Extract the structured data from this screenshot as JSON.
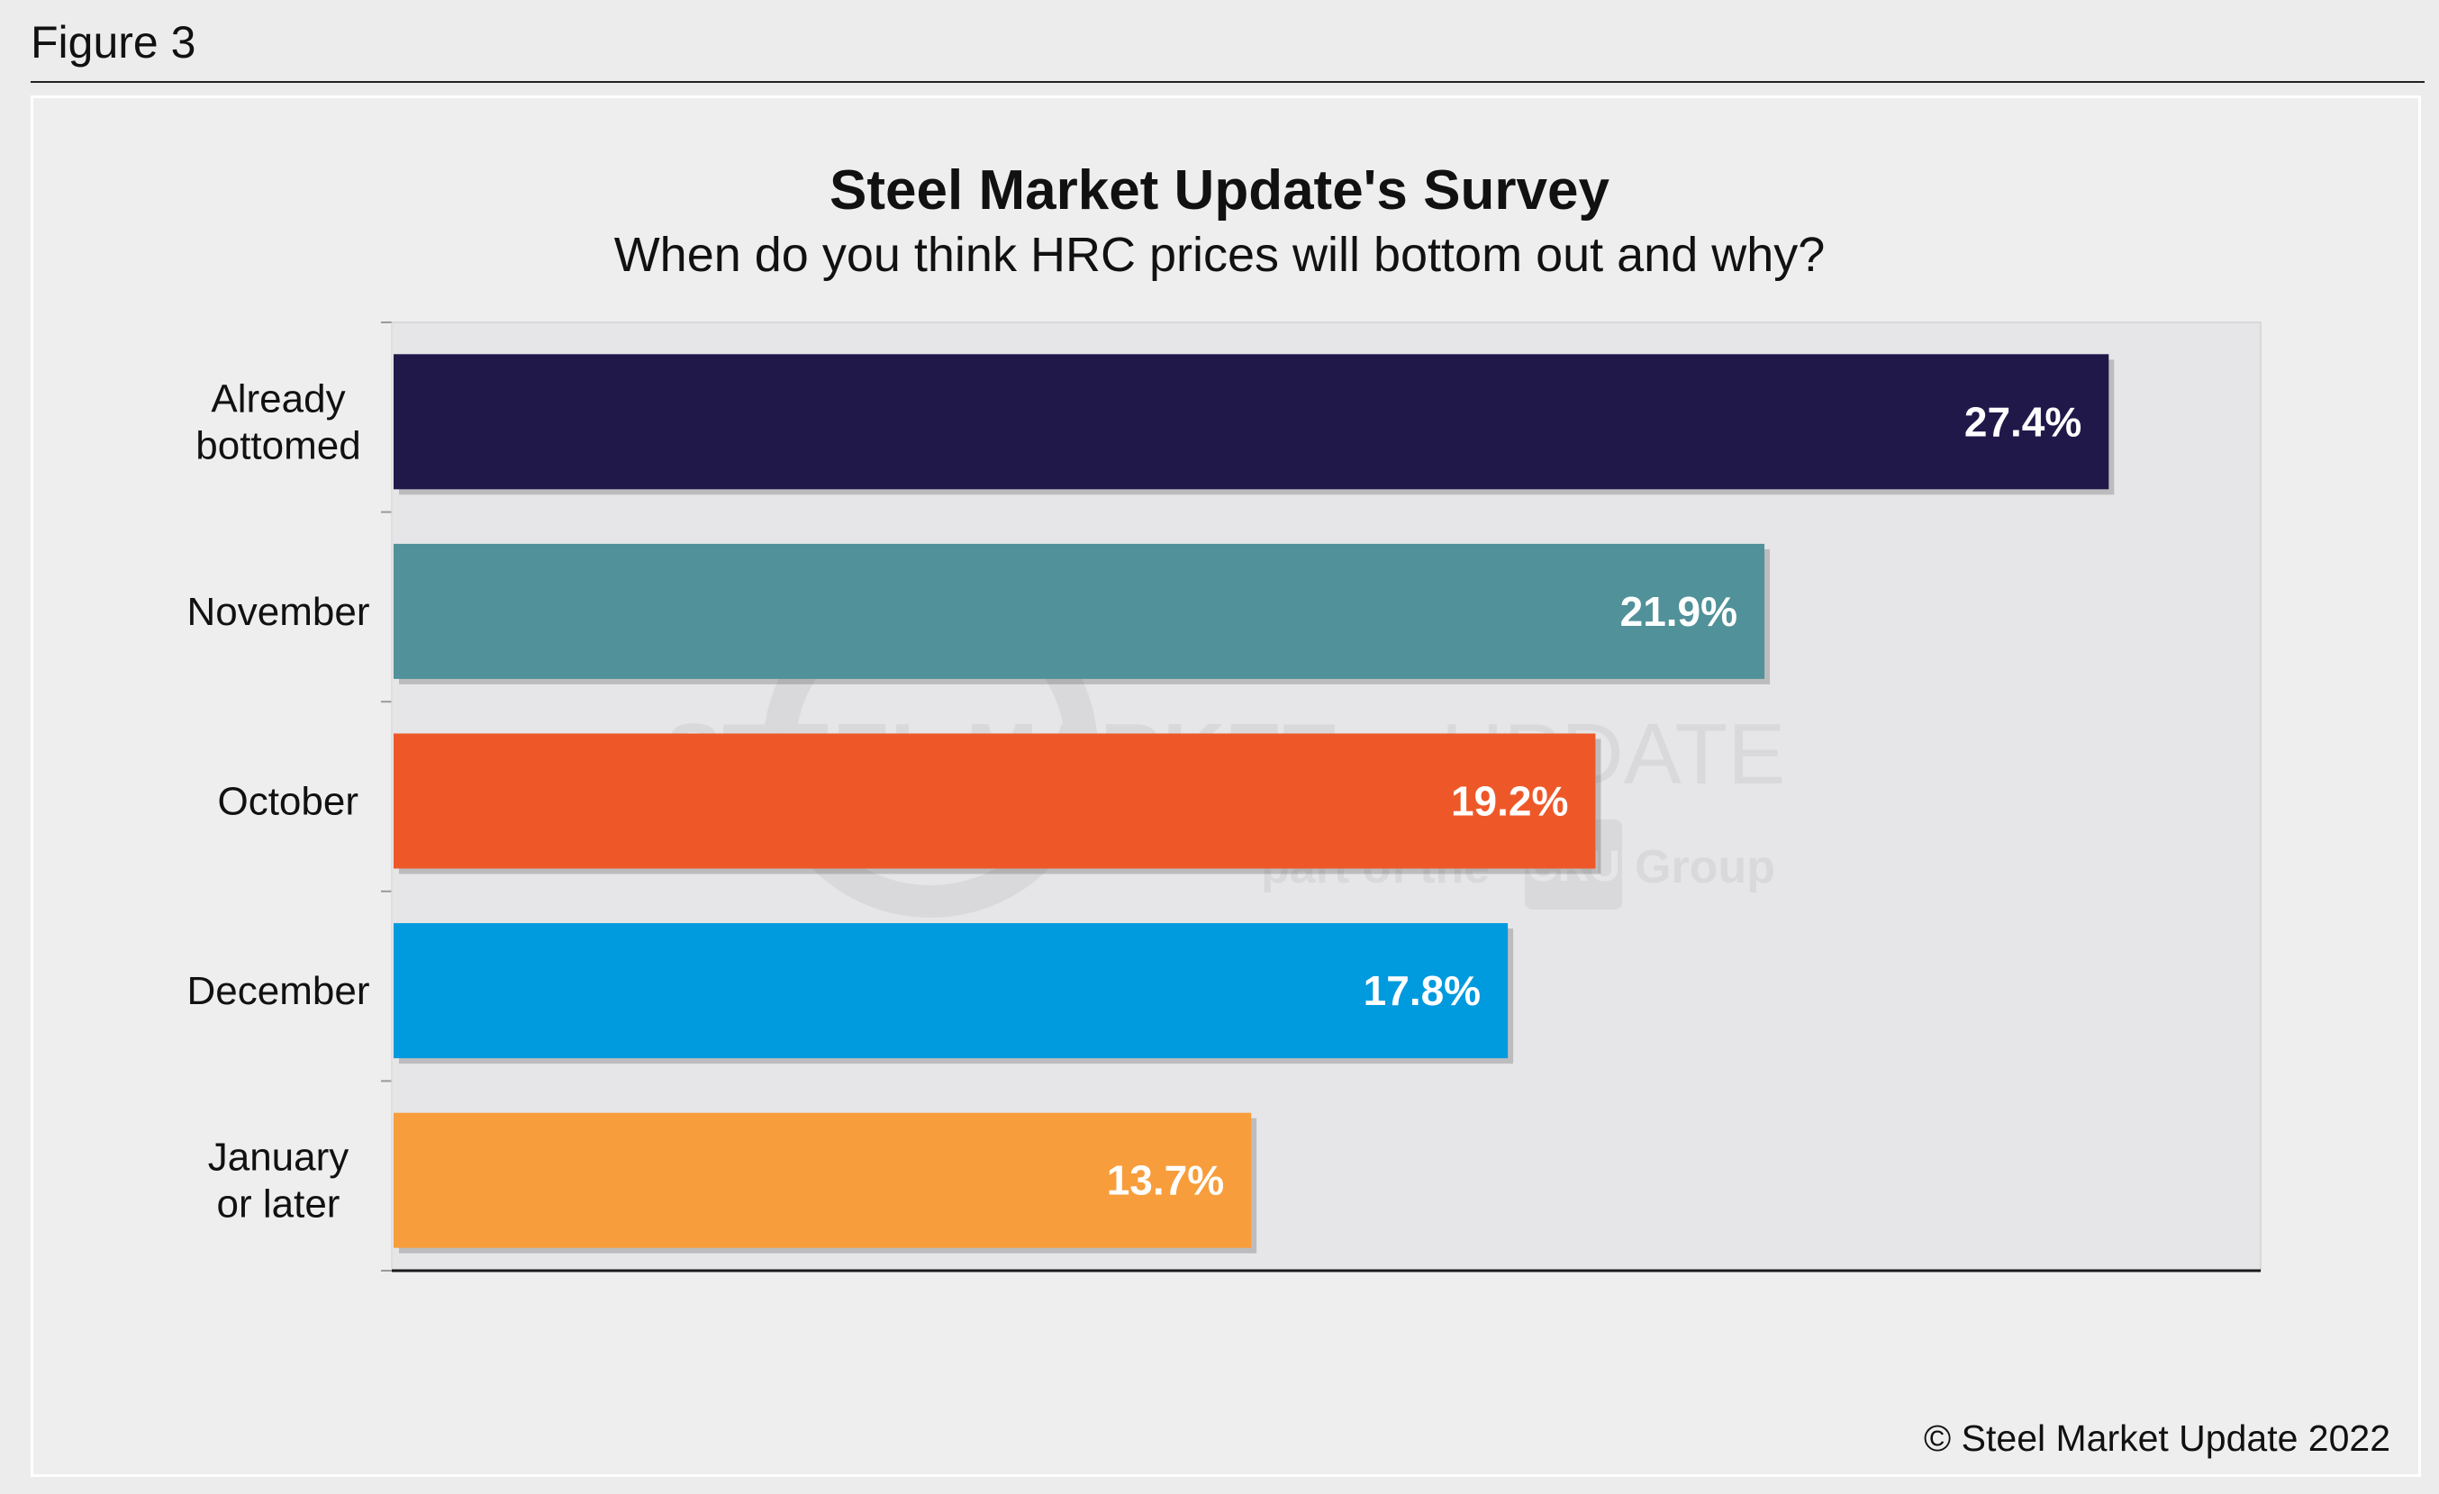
{
  "figure_label": "Figure 3",
  "copyright": "© Steel Market Update 2022",
  "watermark": {
    "line1_bold": "STEEL MARKET",
    "line1_light": "UPDATE",
    "line2_pre": "part of the",
    "line2_box": "CRU",
    "line2_post": "Group"
  },
  "colors": {
    "plot_background": "#e6e6e8",
    "panel_background": "#eeeeee",
    "axis": "#1a1a1a"
  },
  "chart_data": {
    "type": "bar",
    "orientation": "horizontal",
    "title": "Steel Market Update's Survey",
    "subtitle": "When do you think HRC prices will bottom out and why?",
    "categories": [
      [
        "Already",
        "bottomed"
      ],
      [
        "November"
      ],
      [
        "October"
      ],
      [
        "December"
      ],
      [
        "January",
        "or later"
      ]
    ],
    "values": [
      27.4,
      21.9,
      19.2,
      17.8,
      13.7
    ],
    "value_labels": [
      "27.4%",
      "21.9%",
      "19.2%",
      "17.8%",
      "13.7%"
    ],
    "bar_colors": [
      "#21184a",
      "#519199",
      "#ee5828",
      "#009ade",
      "#f89d3b"
    ],
    "xlim": [
      0,
      30
    ],
    "grid": false,
    "legend": "none"
  }
}
